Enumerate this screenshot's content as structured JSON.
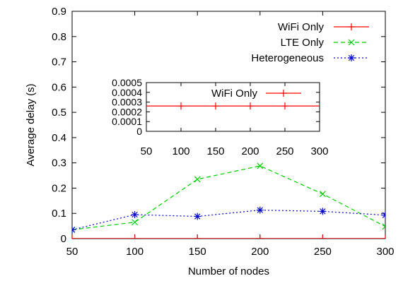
{
  "chart_data": [
    {
      "type": "line",
      "title": "",
      "xlabel": "Number of nodes",
      "ylabel": "Average delay (s)",
      "xlim": [
        50,
        300
      ],
      "ylim": [
        0,
        0.9
      ],
      "grid": false,
      "legend": "top-right",
      "xticks": [
        "50",
        "100",
        "150",
        "200",
        "250",
        "300"
      ],
      "yticks": [
        "0",
        "0.1",
        "0.2",
        "0.3",
        "0.4",
        "0.5",
        "0.6",
        "0.7",
        "0.8",
        "0.9"
      ],
      "x": [
        50,
        100,
        150,
        200,
        250,
        300
      ],
      "series": [
        {
          "name": "WiFi Only",
          "color": "#ff0000",
          "marker": "plus",
          "dash": "solid",
          "values": [
            0.00026,
            0.00026,
            0.00026,
            0.00026,
            0.00026,
            0.00026
          ]
        },
        {
          "name": "LTE Only",
          "color": "#00cc00",
          "marker": "x",
          "dash": "dashed",
          "values": [
            0.035,
            0.065,
            0.235,
            0.288,
            0.177,
            0.048
          ]
        },
        {
          "name": "Heterogeneous",
          "color": "#0000cc",
          "marker": "star",
          "dash": "dotted",
          "values": [
            0.035,
            0.095,
            0.088,
            0.113,
            0.108,
            0.093
          ]
        }
      ]
    },
    {
      "type": "line",
      "title": "",
      "xlabel": "",
      "ylabel": "",
      "xlim": [
        50,
        300
      ],
      "ylim": [
        0,
        0.0005
      ],
      "grid": false,
      "legend": "top-right",
      "xticks": [
        "50",
        "100",
        "150",
        "200",
        "250",
        "300"
      ],
      "yticks": [
        "0",
        "0.0001",
        "0.0002",
        "0.0003",
        "0.0004",
        "0.0005"
      ],
      "x": [
        100,
        150,
        200,
        250
      ],
      "series": [
        {
          "name": "WiFi Only",
          "color": "#ff0000",
          "marker": "plus",
          "dash": "solid",
          "values": [
            0.00026,
            0.00026,
            0.00026,
            0.00026
          ]
        }
      ]
    }
  ]
}
